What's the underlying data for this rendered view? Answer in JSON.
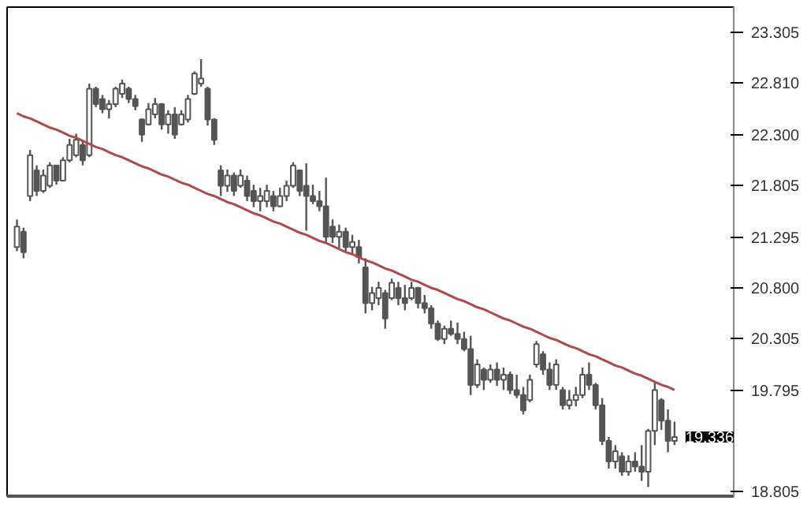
{
  "chart_data": {
    "type": "candlestick",
    "categories": [
      null,
      null,
      null,
      null,
      null,
      null,
      null,
      null,
      null,
      null,
      null,
      null,
      null,
      null,
      null,
      null,
      null,
      null,
      null,
      null,
      null,
      null,
      null,
      null,
      null,
      null,
      null,
      null,
      null,
      null,
      null,
      null,
      null,
      null,
      null,
      null,
      null,
      null,
      null,
      null,
      null,
      null,
      null,
      null,
      null,
      null,
      null,
      null,
      null,
      null,
      null,
      null,
      null,
      null,
      null,
      null,
      null,
      null,
      null,
      null,
      null,
      null,
      null,
      null,
      null,
      null,
      null,
      null,
      null,
      null,
      null,
      null,
      null,
      null,
      null,
      null,
      null,
      null,
      null,
      null,
      null,
      null,
      null,
      null,
      null,
      null,
      null,
      null,
      null,
      null,
      null,
      null,
      null,
      null,
      null,
      null,
      null,
      null,
      null,
      null,
      null
    ],
    "ohlc": [
      [
        21.2,
        21.47,
        21.16,
        21.4
      ],
      [
        21.35,
        21.39,
        21.09,
        21.15
      ],
      [
        21.7,
        22.15,
        21.65,
        22.1
      ],
      [
        21.95,
        22.0,
        21.7,
        21.75
      ],
      [
        21.75,
        21.96,
        21.73,
        21.9
      ],
      [
        21.8,
        22.03,
        21.78,
        22.0
      ],
      [
        22.0,
        22.0,
        21.81,
        21.85
      ],
      [
        21.85,
        22.08,
        21.85,
        22.05
      ],
      [
        22.05,
        22.26,
        22.03,
        22.2
      ],
      [
        22.1,
        22.31,
        22.08,
        22.25
      ],
      [
        22.2,
        22.23,
        22.0,
        22.05
      ],
      [
        22.1,
        22.8,
        22.08,
        22.75
      ],
      [
        22.75,
        22.77,
        22.57,
        22.6
      ],
      [
        22.65,
        22.69,
        22.51,
        22.55
      ],
      [
        22.55,
        22.64,
        22.46,
        22.6
      ],
      [
        22.6,
        22.77,
        22.57,
        22.75
      ],
      [
        22.7,
        22.84,
        22.66,
        22.8
      ],
      [
        22.75,
        22.77,
        22.61,
        22.65
      ],
      [
        22.65,
        22.69,
        22.54,
        22.58
      ],
      [
        22.45,
        22.46,
        22.23,
        22.3
      ],
      [
        22.4,
        22.61,
        22.39,
        22.55
      ],
      [
        22.5,
        22.66,
        22.46,
        22.6
      ],
      [
        22.6,
        22.61,
        22.35,
        22.4
      ],
      [
        22.4,
        22.54,
        22.31,
        22.5
      ],
      [
        22.5,
        22.57,
        22.26,
        22.3
      ],
      [
        22.4,
        22.54,
        22.39,
        22.5
      ],
      [
        22.45,
        22.69,
        22.42,
        22.65
      ],
      [
        22.7,
        22.92,
        22.69,
        22.9
      ],
      [
        22.8,
        23.04,
        22.77,
        22.85
      ],
      [
        22.75,
        22.77,
        22.39,
        22.45
      ],
      [
        22.45,
        22.46,
        22.2,
        22.25
      ],
      [
        21.95,
        22.0,
        21.7,
        21.8
      ],
      [
        21.8,
        21.96,
        21.74,
        21.9
      ],
      [
        21.9,
        21.93,
        21.7,
        21.75
      ],
      [
        21.8,
        21.96,
        21.78,
        21.9
      ],
      [
        21.85,
        21.9,
        21.65,
        21.7
      ],
      [
        21.75,
        21.81,
        21.59,
        21.65
      ],
      [
        21.65,
        21.78,
        21.55,
        21.7
      ],
      [
        21.65,
        21.81,
        21.59,
        21.75
      ],
      [
        21.7,
        21.75,
        21.55,
        21.6
      ],
      [
        21.6,
        21.78,
        21.59,
        21.7
      ],
      [
        21.7,
        21.85,
        21.65,
        21.8
      ],
      [
        21.8,
        22.03,
        21.78,
        22.0
      ],
      [
        21.95,
        21.96,
        21.7,
        21.75
      ],
      [
        21.8,
        22.02,
        21.36,
        21.7
      ],
      [
        21.7,
        21.81,
        21.62,
        21.65
      ],
      [
        21.65,
        21.75,
        21.55,
        21.6
      ],
      [
        21.6,
        21.88,
        21.24,
        21.3
      ],
      [
        21.4,
        21.47,
        21.24,
        21.3
      ],
      [
        21.3,
        21.42,
        21.19,
        21.35
      ],
      [
        21.35,
        21.39,
        21.16,
        21.2
      ],
      [
        21.2,
        21.32,
        21.12,
        21.25
      ],
      [
        21.2,
        21.27,
        21.04,
        21.1
      ],
      [
        21.0,
        21.09,
        20.55,
        20.65
      ],
      [
        20.65,
        20.81,
        20.58,
        20.75
      ],
      [
        20.7,
        20.86,
        20.63,
        20.8
      ],
      [
        20.75,
        20.78,
        20.4,
        20.5
      ],
      [
        20.7,
        20.89,
        20.68,
        20.85
      ],
      [
        20.8,
        20.86,
        20.63,
        20.7
      ],
      [
        20.7,
        20.83,
        20.58,
        20.65
      ],
      [
        20.7,
        20.86,
        20.68,
        20.8
      ],
      [
        20.8,
        20.81,
        20.6,
        20.65
      ],
      [
        20.65,
        20.73,
        20.55,
        20.6
      ],
      [
        20.6,
        20.63,
        20.4,
        20.45
      ],
      [
        20.45,
        20.48,
        20.28,
        20.3
      ],
      [
        20.3,
        20.43,
        20.25,
        20.4
      ],
      [
        20.4,
        20.48,
        20.33,
        20.35
      ],
      [
        20.35,
        20.46,
        20.25,
        20.3
      ],
      [
        20.3,
        20.37,
        20.18,
        20.2
      ],
      [
        20.2,
        20.33,
        19.75,
        19.85
      ],
      [
        19.85,
        20.1,
        19.82,
        20.05
      ],
      [
        20.0,
        20.02,
        19.8,
        19.9
      ],
      [
        19.9,
        20.05,
        19.87,
        20.0
      ],
      [
        20.0,
        20.07,
        19.84,
        19.9
      ],
      [
        19.9,
        20.02,
        19.8,
        19.95
      ],
      [
        19.95,
        19.98,
        19.76,
        19.8
      ],
      [
        19.8,
        19.95,
        19.72,
        19.75
      ],
      [
        19.75,
        19.83,
        19.56,
        19.6
      ],
      [
        19.7,
        19.95,
        19.68,
        19.9
      ],
      [
        20.05,
        20.28,
        20.02,
        20.25
      ],
      [
        20.15,
        20.18,
        19.95,
        20.0
      ],
      [
        20.0,
        20.07,
        19.8,
        19.85
      ],
      [
        19.85,
        20.1,
        19.8,
        20.05
      ],
      [
        19.8,
        19.83,
        19.61,
        19.65
      ],
      [
        19.65,
        19.8,
        19.61,
        19.7
      ],
      [
        19.7,
        19.83,
        19.64,
        19.75
      ],
      [
        19.75,
        20.02,
        19.72,
        19.95
      ],
      [
        19.95,
        20.07,
        19.8,
        19.85
      ],
      [
        19.85,
        19.87,
        19.61,
        19.65
      ],
      [
        19.65,
        19.72,
        19.26,
        19.3
      ],
      [
        19.3,
        19.34,
        19.03,
        19.1
      ],
      [
        19.1,
        19.26,
        19.03,
        19.2
      ],
      [
        19.15,
        19.19,
        18.96,
        19.0
      ],
      [
        19.0,
        19.16,
        18.96,
        19.1
      ],
      [
        19.1,
        19.19,
        19.0,
        19.05
      ],
      [
        19.05,
        19.26,
        18.91,
        19.0
      ],
      [
        19.0,
        19.42,
        18.85,
        19.4
      ],
      [
        19.4,
        19.87,
        19.26,
        19.8
      ],
      [
        19.7,
        19.72,
        19.41,
        19.5
      ],
      [
        19.5,
        19.61,
        19.19,
        19.3
      ],
      [
        19.3,
        19.49,
        19.26,
        19.34
      ]
    ],
    "color": "#555555",
    "series": [
      {
        "type": "line",
        "color": "#b04a4a",
        "values": [
          22.51,
          22.48,
          22.46,
          22.43,
          22.4,
          22.37,
          22.35,
          22.32,
          22.29,
          22.27,
          22.24,
          22.21,
          22.18,
          22.16,
          22.13,
          22.1,
          22.08,
          22.05,
          22.02,
          21.99,
          21.97,
          21.94,
          21.91,
          21.89,
          21.86,
          21.83,
          21.81,
          21.78,
          21.75,
          21.72,
          21.7,
          21.67,
          21.64,
          21.62,
          21.59,
          21.56,
          21.53,
          21.51,
          21.48,
          21.45,
          21.43,
          21.4,
          21.37,
          21.34,
          21.32,
          21.29,
          21.26,
          21.24,
          21.21,
          21.18,
          21.15,
          21.13,
          21.1,
          21.07,
          21.05,
          21.02,
          20.99,
          20.97,
          20.94,
          20.91,
          20.88,
          20.86,
          20.83,
          20.8,
          20.78,
          20.75,
          20.72,
          20.69,
          20.67,
          20.64,
          20.61,
          20.59,
          20.56,
          20.53,
          20.5,
          20.48,
          20.45,
          20.42,
          20.4,
          20.37,
          20.34,
          20.31,
          20.29,
          20.26,
          20.23,
          20.21,
          20.18,
          20.15,
          20.13,
          20.1,
          20.07,
          20.04,
          20.02,
          19.99,
          19.96,
          19.94,
          19.91,
          19.88,
          19.85,
          19.83,
          19.8
        ]
      }
    ],
    "ylim": [
      18.76,
      23.55
    ],
    "yticks": [
      18.805,
      19.795,
      20.305,
      {
        "value": 20.8,
        "label": "20.800"
      },
      21.295,
      21.805,
      {
        "value": 22.3,
        "label": "22.300"
      },
      {
        "value": 22.81,
        "label": "22.810"
      },
      23.305
    ],
    "annotations": [
      "19.336"
    ],
    "grid": false
  }
}
